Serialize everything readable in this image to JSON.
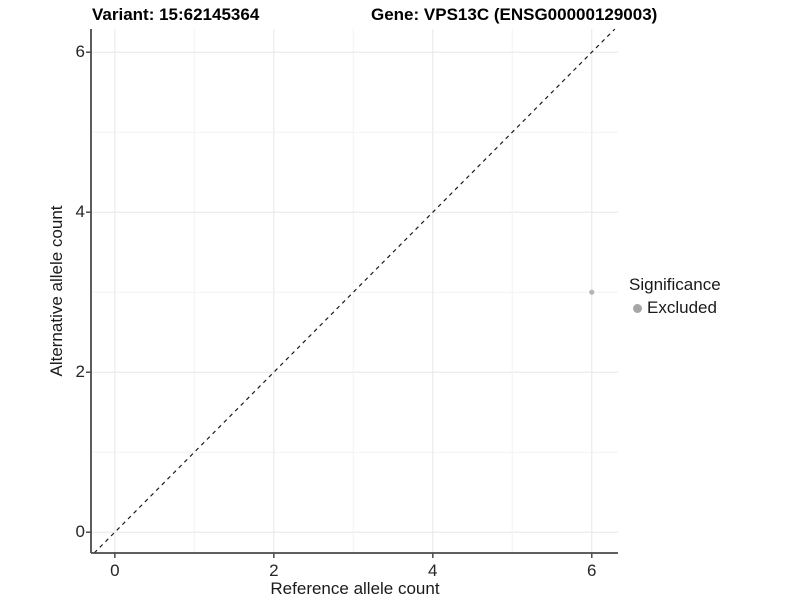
{
  "chart_data": {
    "type": "scatter",
    "title_left": "Variant: 15:62145364",
    "title_right": "Gene: VPS13C (ENSG00000129003)",
    "xlabel": "Reference allele count",
    "ylabel": "Alternative allele count",
    "xlim": [
      -0.3,
      6.33
    ],
    "ylim": [
      -0.26,
      6.29
    ],
    "x_ticks": [
      0,
      2,
      4,
      6
    ],
    "y_ticks": [
      0,
      2,
      4,
      6
    ],
    "grid": {
      "major_every": 2,
      "minor_every": 1,
      "from": 0,
      "to": 6
    },
    "points": [
      {
        "x": 6,
        "y": 3,
        "significance": "Excluded"
      }
    ],
    "reference_line": {
      "kind": "identity y=x",
      "style": "dashed",
      "color": "#1a1a1a"
    },
    "legend": {
      "position": "right",
      "title": "Significance",
      "items": [
        {
          "label": "Excluded",
          "color": "#a6a6a6"
        }
      ]
    },
    "colors": {
      "point": "#b5b5b5",
      "grid_major": "#e7e7e7",
      "grid_minor": "#f3f3f3",
      "axis_line": "#4a4a4a",
      "tick_mark": "#4a4a4a"
    }
  }
}
